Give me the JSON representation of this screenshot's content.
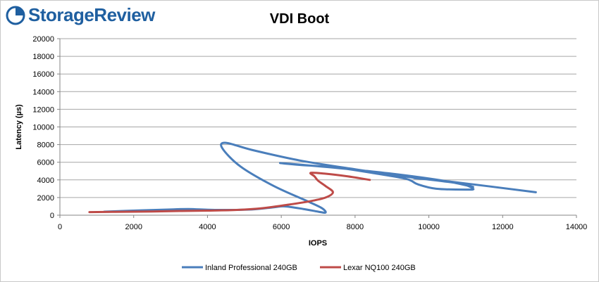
{
  "brand": {
    "name": "StorageReview",
    "logo_icon": "storagereview-logo-icon",
    "color": "#1f5fa0"
  },
  "chart_data": {
    "type": "line",
    "title": "VDI Boot",
    "xlabel": "IOPS",
    "ylabel": "Latency (µs)",
    "xlim": [
      0,
      14000
    ],
    "ylim": [
      0,
      20000
    ],
    "xticks": [
      0,
      2000,
      4000,
      6000,
      8000,
      10000,
      12000,
      14000
    ],
    "yticks": [
      0,
      2000,
      4000,
      6000,
      8000,
      10000,
      12000,
      14000,
      16000,
      18000,
      20000
    ],
    "grid": "horizontal",
    "legend": "bottom",
    "series": [
      {
        "name": "Inland Professional 240GB",
        "color": "#4a7ebb",
        "points": [
          [
            1200,
            400
          ],
          [
            2200,
            550
          ],
          [
            3000,
            650
          ],
          [
            3500,
            700
          ],
          [
            4200,
            600
          ],
          [
            5200,
            650
          ],
          [
            5800,
            900
          ],
          [
            6100,
            1000
          ],
          [
            6600,
            700
          ],
          [
            7000,
            400
          ],
          [
            7200,
            300
          ],
          [
            7100,
            800
          ],
          [
            6700,
            1600
          ],
          [
            5800,
            3300
          ],
          [
            4900,
            5500
          ],
          [
            4400,
            7600
          ],
          [
            4500,
            8200
          ],
          [
            5200,
            7400
          ],
          [
            6500,
            6200
          ],
          [
            8000,
            5200
          ],
          [
            9500,
            4300
          ],
          [
            10800,
            3600
          ],
          [
            11200,
            3000
          ],
          [
            11000,
            2900
          ],
          [
            10200,
            3000
          ],
          [
            9700,
            3500
          ],
          [
            9400,
            4100
          ],
          [
            8600,
            4700
          ],
          [
            7500,
            5400
          ],
          [
            6500,
            5700
          ],
          [
            6000,
            5900
          ],
          [
            7400,
            5400
          ],
          [
            9000,
            4700
          ],
          [
            10400,
            3900
          ],
          [
            11200,
            3200
          ],
          [
            10400,
            3900
          ],
          [
            9600,
            4200
          ],
          [
            10600,
            3800
          ],
          [
            12900,
            2600
          ]
        ]
      },
      {
        "name": "Lexar NQ100 240GB",
        "color": "#be4b48",
        "points": [
          [
            800,
            350
          ],
          [
            1500,
            380
          ],
          [
            2500,
            420
          ],
          [
            3300,
            480
          ],
          [
            4000,
            520
          ],
          [
            4800,
            600
          ],
          [
            5500,
            800
          ],
          [
            6200,
            1200
          ],
          [
            6800,
            1600
          ],
          [
            7200,
            2000
          ],
          [
            7400,
            2600
          ],
          [
            7200,
            3300
          ],
          [
            7000,
            3900
          ],
          [
            6900,
            4400
          ],
          [
            6800,
            4800
          ],
          [
            7200,
            4700
          ],
          [
            7800,
            4400
          ],
          [
            8400,
            4000
          ]
        ]
      }
    ]
  }
}
